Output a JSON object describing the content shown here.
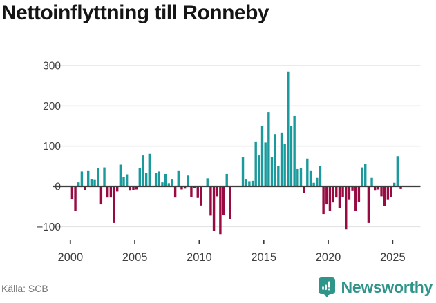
{
  "title": "Nettoinflyttning till Ronneby",
  "source_label": "Källa: SCB",
  "logo": {
    "text": "Newsworthy",
    "icon": "newsworthy-bubble-chart-icon",
    "color": "#2F948A"
  },
  "colors": {
    "positive_bar": "#1A9A9C",
    "negative_bar": "#970B42",
    "zero_line": "#3D3D3D",
    "gridline": "#E4E4E4",
    "axis_text": "#3F3F3F",
    "title_text": "#151515",
    "source_text": "#767676"
  },
  "chart_data": {
    "type": "bar",
    "title": "Nettoinflyttning till Ronneby",
    "frequency": "quarterly",
    "x_start": "2000 Q1",
    "x_end": "2025 Q3",
    "x_ticks": [
      "2000",
      "2005",
      "2010",
      "2015",
      "2020",
      "2025"
    ],
    "y_ticks": [
      "300",
      "200",
      "100",
      "0",
      "−100"
    ],
    "y_tick_values": [
      300,
      200,
      100,
      0,
      -100
    ],
    "ylim": [
      -130,
      320
    ],
    "grid": true,
    "legend": "none",
    "values": [
      -31,
      -60,
      10,
      37,
      -7,
      38,
      18,
      16,
      45,
      -43,
      47,
      -26,
      -26,
      -89,
      -11,
      54,
      24,
      30,
      -9,
      -8,
      -6,
      46,
      77,
      34,
      81,
      0,
      33,
      37,
      10,
      31,
      8,
      17,
      -26,
      38,
      -6,
      -4,
      27,
      -25,
      -3,
      -27,
      -46,
      0,
      20,
      -71,
      -109,
      -23,
      -117,
      -69,
      31,
      -80,
      0,
      0,
      0,
      73,
      17,
      13,
      14,
      110,
      77,
      150,
      109,
      185,
      73,
      130,
      50,
      134,
      105,
      285,
      150,
      175,
      43,
      46,
      -14,
      69,
      38,
      9,
      21,
      50,
      -67,
      -43,
      -59,
      -38,
      -26,
      -53,
      -24,
      -105,
      -32,
      -10,
      -59,
      -37,
      47,
      56,
      -89,
      21,
      -9,
      -6,
      -23,
      -48,
      -32,
      -25,
      9,
      75,
      -5
    ]
  }
}
